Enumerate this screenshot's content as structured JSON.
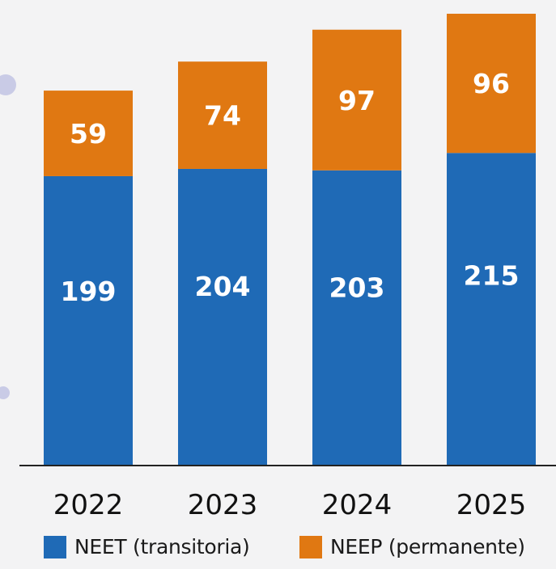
{
  "chart_data": {
    "type": "bar",
    "stacked": true,
    "categories": [
      "2022",
      "2023",
      "2024",
      "2025"
    ],
    "series": [
      {
        "name": "NEET (transitoria)",
        "values": [
          199,
          204,
          203,
          215
        ],
        "color": "#1f6ab6"
      },
      {
        "name": "NEEP (permanente)",
        "values": [
          59,
          74,
          97,
          96
        ],
        "color": "#e07812"
      }
    ],
    "title": "",
    "xlabel": "",
    "ylabel": "",
    "ylim": [
      0,
      311
    ],
    "grid": false,
    "legend_position": "bottom",
    "data_labels": true
  },
  "legend": {
    "items": [
      {
        "label": "NEET (transitoria)",
        "color": "#1f6ab6"
      },
      {
        "label": "NEEP (permanente)",
        "color": "#e07812"
      }
    ]
  }
}
